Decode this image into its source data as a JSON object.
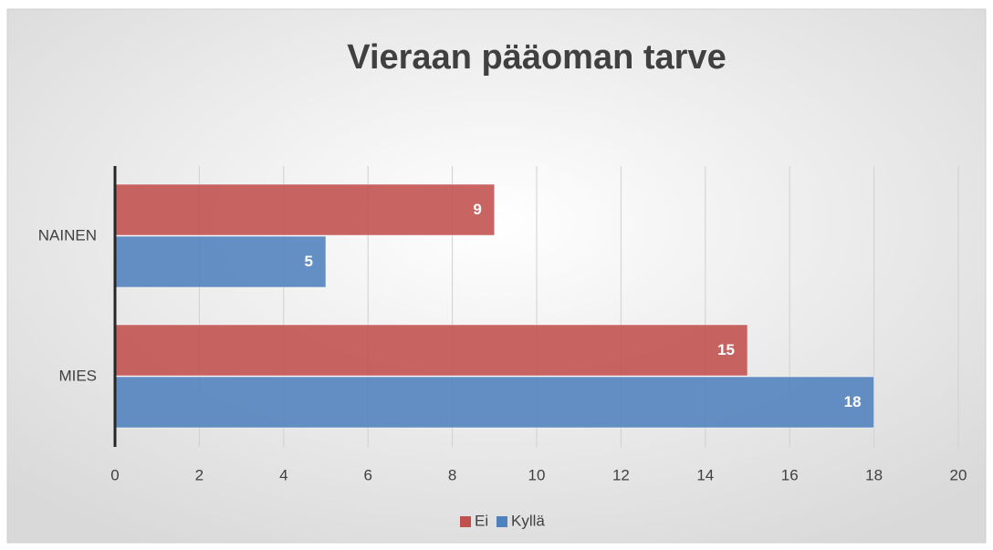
{
  "chart_data": {
    "type": "hbar",
    "title": "Vieraan pääoman tarve",
    "categories": [
      "NAINEN",
      "MIES"
    ],
    "series": [
      {
        "name": "Ei",
        "color": "#c0504d",
        "values": [
          9,
          15
        ]
      },
      {
        "name": "Kyllä",
        "color": "#4f81bd",
        "values": [
          5,
          18
        ]
      }
    ],
    "xlim": [
      0,
      20
    ],
    "xticks": [
      0,
      2,
      4,
      6,
      8,
      10,
      12,
      14,
      16,
      18,
      20
    ],
    "grid": true,
    "legend": "bottom"
  }
}
